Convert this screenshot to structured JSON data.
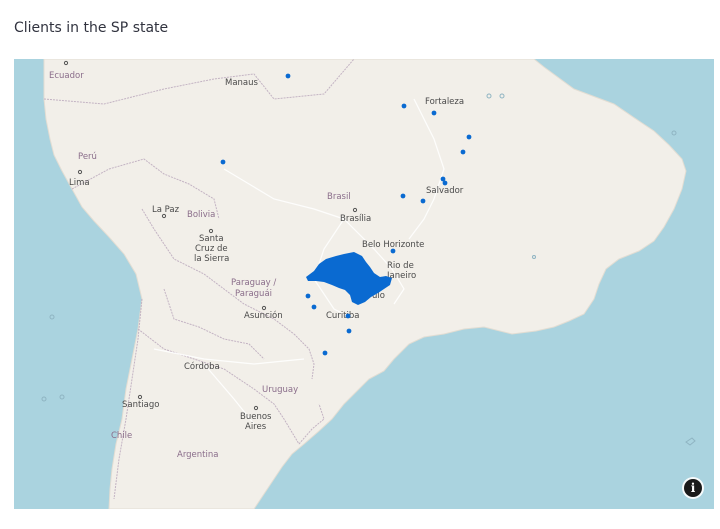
{
  "page": {
    "title": "Clients in the SP state"
  },
  "map": {
    "colors": {
      "ocean": "#aad3df",
      "land": "#f2efe9",
      "border": "#b8a7b8",
      "points": "#0a6ad1"
    },
    "labels": {
      "ecuador": "Ecuador",
      "manaus": "Manaus",
      "fortaleza": "Fortaleza",
      "peru": "Perú",
      "lima": "Lima",
      "brasil": "Brasil",
      "salvador": "Salvador",
      "la_paz": "La Paz",
      "bolivia": "Bolivia",
      "brasilia": "Brasília",
      "santa_cruz_1": "Santa",
      "santa_cruz_2": "Cruz de",
      "santa_cruz_3": "la Sierra",
      "belo_horizonte": "Belo Horizonte",
      "rio_1": "Rio de",
      "rio_2": "Janeiro",
      "paraguay_1": "Paraguay /",
      "paraguay_2": "Paraguái",
      "sao_paulo": "ulo",
      "asuncion": "Asunción",
      "curitiba": "Curitiba",
      "cordoba": "Córdoba",
      "uruguay": "Uruguay",
      "santiago": "Santiago",
      "buenos_1": "Buenos",
      "buenos_2": "Aires",
      "chile": "Chile",
      "argentina": "Argentina"
    },
    "info_icon": "info-icon"
  }
}
